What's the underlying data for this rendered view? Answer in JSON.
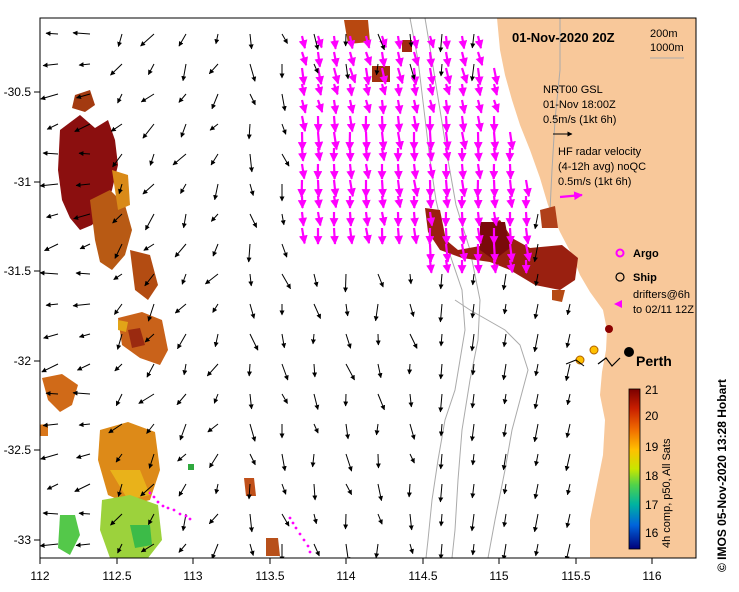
{
  "map": {
    "date_title": "01-Nov-2020 20Z",
    "isobath_labels": [
      "200m",
      "1000m"
    ],
    "x_ticks": [
      "112",
      "112.5",
      "113",
      "113.5",
      "114",
      "114.5",
      "115",
      "115.5",
      "116"
    ],
    "y_ticks": [
      "-30.5",
      "-31",
      "-31.5",
      "-32",
      "-32.5",
      "-33"
    ],
    "city_label": "Perth",
    "credit": "© IMOS 05-Nov-2020 13:28 Hobart"
  },
  "legend": {
    "gsl_lines": [
      "NRT00 GSL",
      "01-Nov 18:00Z",
      "0.5m/s (1kt 6h)"
    ],
    "hf_lines": [
      "HF radar velocity",
      "(4-12h avg) noQC",
      "0.5m/s (1kt 6h)"
    ],
    "argo_label": "Argo",
    "ship_label": "Ship",
    "drifter_lines": [
      "drifters@6h",
      "to 02/11 12Z"
    ]
  },
  "colorbar": {
    "ticks": [
      "21",
      "20",
      "19",
      "18",
      "17",
      "16"
    ],
    "label": "4h comp, p50, All Sats"
  },
  "colors": {
    "land": "#f8c89a",
    "hf_radar": "#ff00ff",
    "isobath": "#aaaaaa"
  }
}
